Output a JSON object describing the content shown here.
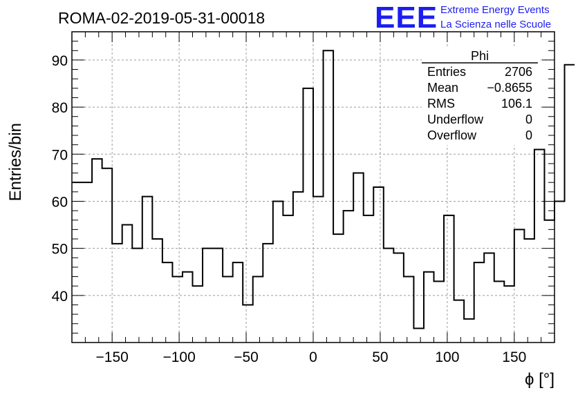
{
  "chart_data": {
    "type": "bar",
    "style": "step-histogram",
    "title": "ROMA-02-2019-05-31-00018",
    "xlabel": "ϕ [°]",
    "ylabel": "Entries/bin",
    "xlim": [
      -180,
      180
    ],
    "ylim": [
      30,
      96
    ],
    "grid": true,
    "bin_width": 7.5,
    "x_ticks": [
      -150,
      -100,
      -50,
      0,
      50,
      100,
      150
    ],
    "x_tick_labels": [
      "−150",
      "−100",
      "−50",
      "0",
      "50",
      "100",
      "150"
    ],
    "y_ticks": [
      40,
      50,
      60,
      70,
      80,
      90
    ],
    "y_tick_labels": [
      "40",
      "50",
      "60",
      "70",
      "80",
      "90"
    ],
    "values": [
      64,
      64,
      69,
      67,
      51,
      55,
      50,
      61,
      52,
      47,
      44,
      45,
      42,
      50,
      50,
      44,
      47,
      38,
      44,
      51,
      60,
      57,
      62,
      84,
      61,
      92,
      53,
      58,
      66,
      57,
      63,
      50,
      49,
      44,
      33,
      45,
      43,
      57,
      39,
      35,
      47,
      49,
      43,
      42,
      54,
      52,
      71,
      56,
      60,
      89
    ],
    "stats": {
      "title": "Phi",
      "rows": [
        {
          "label": "Entries",
          "value": "2706"
        },
        {
          "label": "Mean",
          "value": "−0.8655"
        },
        {
          "label": "RMS",
          "value": "106.1"
        },
        {
          "label": "Underflow",
          "value": "0"
        },
        {
          "label": "Overflow",
          "value": "0"
        }
      ]
    }
  },
  "logo": {
    "mark": "EEE",
    "line1": "Extreme Energy Events",
    "line2": "La Scienza nelle Scuole",
    "color": "#1d1df0"
  }
}
